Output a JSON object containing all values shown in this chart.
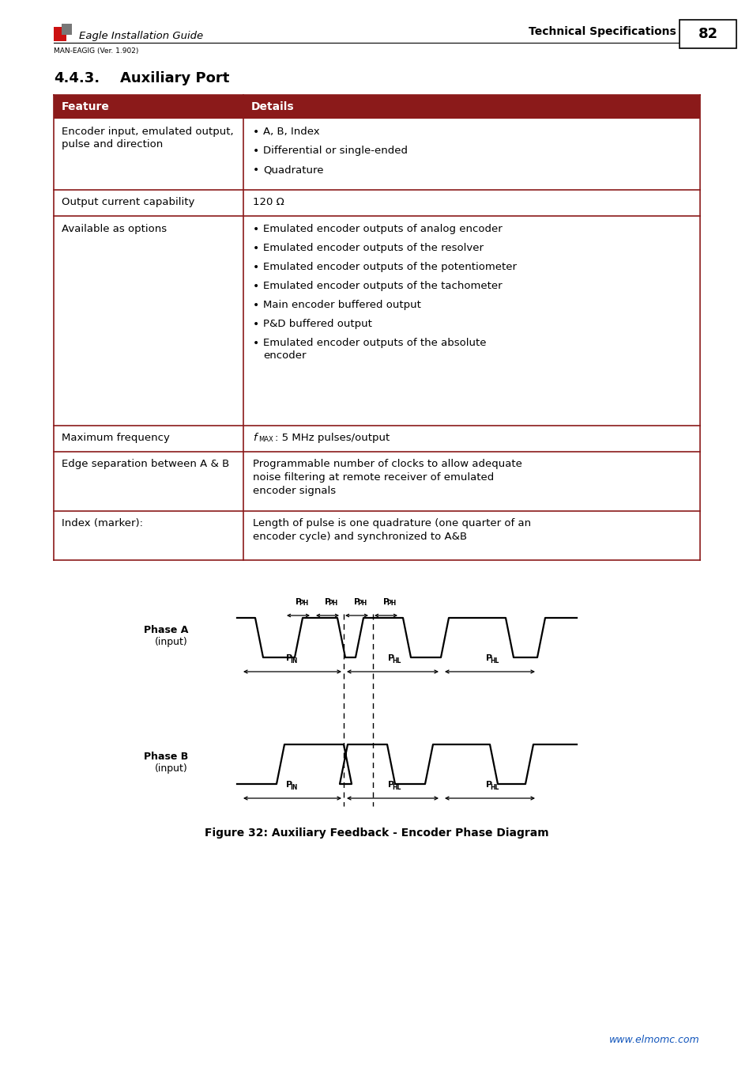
{
  "header_bg": "#8B1A1A",
  "header_text_color": "#FFFFFF",
  "col1_header": "Feature",
  "col2_header": "Details",
  "rows": [
    {
      "feature": "Encoder input, emulated output,\npulse and direction",
      "details_bullets": [
        "A, B, Index",
        "Differential or single-ended",
        "Quadrature"
      ],
      "details_text": null
    },
    {
      "feature": "Output current capability",
      "details_bullets": null,
      "details_text": "120 Ω"
    },
    {
      "feature": "Available as options",
      "details_bullets": [
        "Emulated encoder outputs of analog encoder",
        "Emulated encoder outputs of the resolver",
        "Emulated encoder outputs of the potentiometer",
        "Emulated encoder outputs of the tachometer",
        "Main encoder buffered output",
        "P&D buffered output",
        "Emulated encoder outputs of the absolute|encoder"
      ],
      "details_text": null
    },
    {
      "feature": "Maximum frequency",
      "details_bullets": null,
      "details_text": "fMAX : 5 MHz pulses/output"
    },
    {
      "feature": "Edge separation between A & B",
      "details_bullets": null,
      "details_text": "Programmable number of clocks to allow adequate\nnoise filtering at remote receiver of emulated\nencoder signals"
    },
    {
      "feature": "Index (marker):",
      "details_bullets": null,
      "details_text": "Length of pulse is one quadrature (one quarter of an\nencoder cycle) and synchronized to A&B"
    }
  ],
  "figure_caption": "Figure 32: Auxiliary Feedback - Encoder Phase Diagram",
  "header_left": "Eagle Installation Guide",
  "header_right": "Technical Specifications",
  "page_number": "82",
  "sub_header": "MAN-EAGIG (Ver. 1.902)",
  "website": "www.elmomc.com",
  "border_color": "#8B1A1A",
  "section_title_num": "4.4.3.",
  "section_title_text": "Auxiliary Port"
}
